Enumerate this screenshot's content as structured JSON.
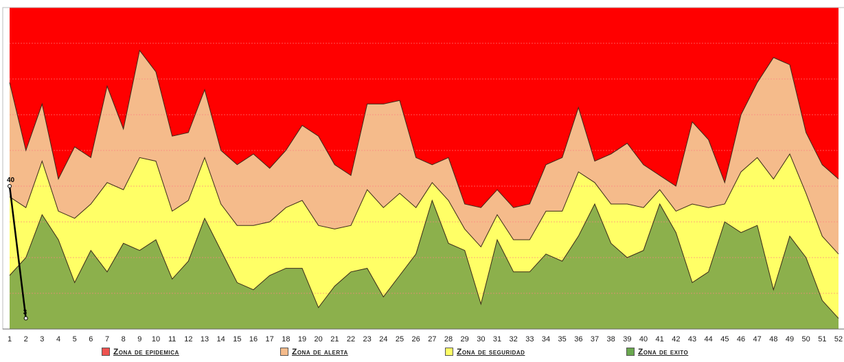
{
  "chart_data": {
    "type": "area",
    "stacked": true,
    "x": [
      1,
      2,
      3,
      4,
      5,
      6,
      7,
      8,
      9,
      10,
      11,
      12,
      13,
      14,
      15,
      16,
      17,
      18,
      19,
      20,
      21,
      22,
      23,
      24,
      25,
      26,
      27,
      28,
      29,
      30,
      31,
      32,
      33,
      34,
      35,
      36,
      37,
      38,
      39,
      40,
      41,
      42,
      43,
      44,
      45,
      46,
      47,
      48,
      49,
      50,
      51,
      52
    ],
    "ylim": [
      0,
      90
    ],
    "grid": true,
    "series": [
      {
        "name": "Zona de exito",
        "color": "#8cb04c",
        "values": [
          15,
          20,
          32,
          25,
          13,
          22,
          16,
          24,
          22,
          25,
          14,
          19,
          31,
          22,
          13,
          11,
          15,
          17,
          17,
          6,
          12,
          16,
          17,
          9,
          15,
          21,
          36,
          24,
          22,
          7,
          25,
          16,
          16,
          21,
          19,
          26,
          35,
          24,
          20,
          22,
          35,
          27,
          13,
          16,
          30,
          27,
          29,
          11,
          26,
          20,
          8,
          3
        ]
      },
      {
        "name": "Zona de seguridad",
        "color": "#ffff66",
        "values": [
          37,
          34,
          47,
          33,
          31,
          35,
          41,
          39,
          48,
          47,
          33,
          36,
          48,
          35,
          29,
          29,
          30,
          34,
          36,
          29,
          28,
          29,
          39,
          34,
          38,
          34,
          41,
          36,
          28,
          23,
          32,
          25,
          25,
          33,
          33,
          44,
          41,
          35,
          35,
          34,
          39,
          33,
          35,
          34,
          35,
          44,
          48,
          42,
          49,
          38,
          26,
          21
        ]
      },
      {
        "name": "Zona de alerta",
        "color": "#f5bb8b",
        "values": [
          69,
          50,
          63,
          42,
          51,
          48,
          68,
          56,
          78,
          72,
          54,
          55,
          67,
          50,
          46,
          49,
          45,
          50,
          57,
          54,
          46,
          43,
          63,
          63,
          64,
          48,
          46,
          48,
          35,
          34,
          39,
          34,
          35,
          46,
          48,
          62,
          47,
          49,
          52,
          46,
          43,
          40,
          58,
          53,
          41,
          60,
          69,
          76,
          74,
          55,
          46,
          42
        ]
      },
      {
        "name": "Zona de epidemica",
        "color": "#ff0000",
        "values": [
          90,
          90,
          90,
          90,
          90,
          90,
          90,
          90,
          90,
          90,
          90,
          90,
          90,
          90,
          90,
          90,
          90,
          90,
          90,
          90,
          90,
          90,
          90,
          90,
          90,
          90,
          90,
          90,
          90,
          90,
          90,
          90,
          90,
          90,
          90,
          90,
          90,
          90,
          90,
          90,
          90,
          90,
          90,
          90,
          90,
          90,
          90,
          90,
          90,
          90,
          90,
          90
        ]
      }
    ],
    "cases_line": {
      "x": [
        1,
        2
      ],
      "values": [
        40,
        3
      ],
      "data_labels": [
        "40",
        "3"
      ],
      "color": "#000000"
    }
  },
  "legend": [
    {
      "label": "Zona de epidemica",
      "color": "#ef5350"
    },
    {
      "label": "Zona de alerta",
      "color": "#f5bb8b"
    },
    {
      "label": "Zona de seguridad",
      "color": "#ffff66"
    },
    {
      "label": "Zona de exito",
      "color": "#6aa84f"
    }
  ]
}
